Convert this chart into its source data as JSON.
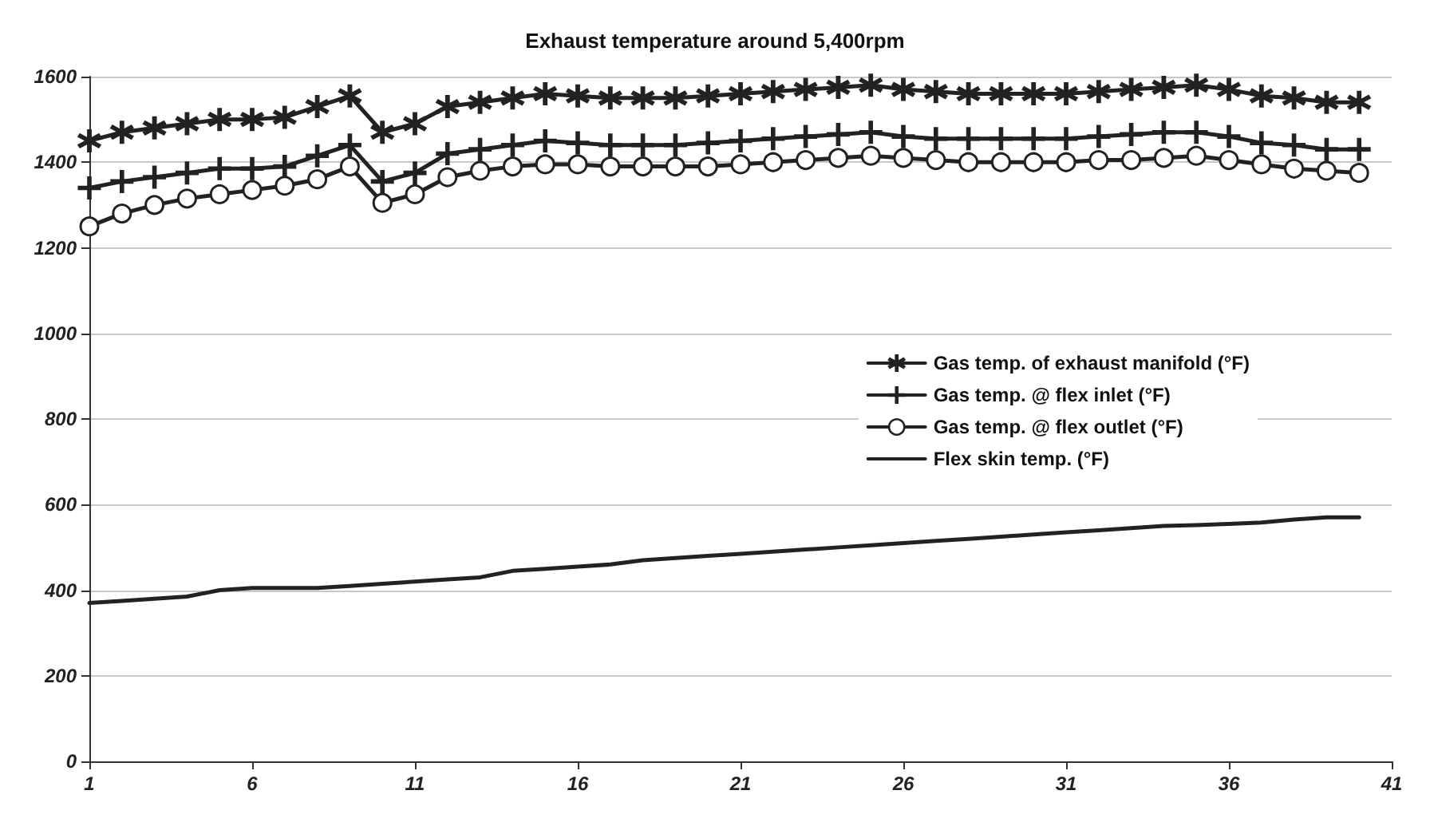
{
  "chart_data": {
    "type": "line",
    "title": "Exhaust temperature around 5,400rpm",
    "x": [
      1,
      2,
      3,
      4,
      5,
      6,
      7,
      8,
      9,
      10,
      11,
      12,
      13,
      14,
      15,
      16,
      17,
      18,
      19,
      20,
      21,
      22,
      23,
      24,
      25,
      26,
      27,
      28,
      29,
      30,
      31,
      32,
      33,
      34,
      35,
      36,
      37,
      38,
      39,
      40
    ],
    "series": [
      {
        "name": "Gas temp. of exhaust manifold (°F)",
        "color": "#222222",
        "marker": "star",
        "values": [
          1450,
          1470,
          1480,
          1490,
          1500,
          1500,
          1505,
          1530,
          1555,
          1470,
          1490,
          1530,
          1540,
          1550,
          1560,
          1555,
          1550,
          1550,
          1550,
          1555,
          1560,
          1565,
          1570,
          1575,
          1580,
          1570,
          1565,
          1560,
          1560,
          1560,
          1560,
          1565,
          1570,
          1575,
          1580,
          1570,
          1555,
          1550,
          1540,
          1540
        ]
      },
      {
        "name": "Gas temp. @ flex inlet (°F)",
        "color": "#222222",
        "marker": "cross",
        "values": [
          1340,
          1355,
          1365,
          1375,
          1385,
          1385,
          1390,
          1415,
          1440,
          1355,
          1375,
          1420,
          1430,
          1440,
          1450,
          1445,
          1440,
          1440,
          1440,
          1445,
          1450,
          1455,
          1460,
          1465,
          1470,
          1460,
          1455,
          1455,
          1455,
          1455,
          1455,
          1460,
          1465,
          1470,
          1470,
          1460,
          1445,
          1440,
          1430,
          1430
        ]
      },
      {
        "name": "Gas temp. @ flex outlet (°F)",
        "color": "#222222",
        "marker": "circle",
        "values": [
          1250,
          1280,
          1300,
          1315,
          1325,
          1335,
          1345,
          1360,
          1390,
          1305,
          1325,
          1365,
          1380,
          1390,
          1395,
          1395,
          1390,
          1390,
          1390,
          1390,
          1395,
          1400,
          1405,
          1410,
          1415,
          1410,
          1405,
          1400,
          1400,
          1400,
          1400,
          1405,
          1405,
          1410,
          1415,
          1405,
          1395,
          1385,
          1380,
          1375
        ]
      },
      {
        "name": "Flex skin temp. (°F)",
        "color": "#222222",
        "marker": "none",
        "values": [
          370,
          375,
          380,
          385,
          400,
          405,
          405,
          405,
          410,
          415,
          420,
          425,
          430,
          445,
          450,
          455,
          460,
          470,
          475,
          480,
          485,
          490,
          495,
          500,
          505,
          510,
          515,
          520,
          525,
          530,
          535,
          540,
          545,
          550,
          552,
          555,
          558,
          565,
          570,
          570
        ]
      }
    ],
    "xlim": [
      1,
      41
    ],
    "xticks": [
      1,
      6,
      11,
      16,
      21,
      26,
      31,
      36,
      41
    ],
    "ylim": [
      0,
      1600
    ],
    "yticks": [
      0,
      200,
      400,
      600,
      800,
      1000,
      1200,
      1400,
      1600
    ],
    "grid": "y",
    "legend": "right"
  }
}
